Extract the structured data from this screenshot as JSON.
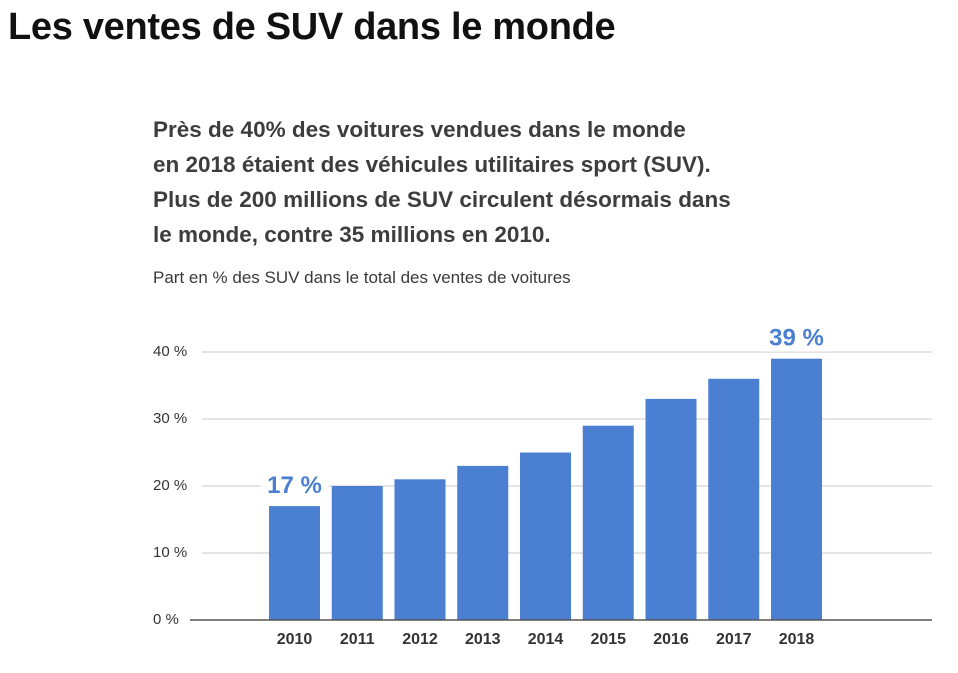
{
  "header": {
    "title": "Les ventes de SUV dans le monde",
    "subtitle_lines": [
      "Près de 40% des voitures vendues dans le monde",
      "en 2018 étaient des véhicules utilitaires sport (SUV).",
      "Plus de 200 millions de SUV circulent désormais dans",
      "le monde, contre 35 millions en 2010."
    ]
  },
  "chart_data": {
    "type": "bar",
    "title": "Part en % des SUV dans le total des ventes de voitures",
    "categories": [
      "2010",
      "2011",
      "2012",
      "2013",
      "2014",
      "2015",
      "2016",
      "2017",
      "2018"
    ],
    "values": [
      17,
      20,
      21,
      23,
      25,
      29,
      33,
      36,
      39
    ],
    "ylim": [
      0,
      40
    ],
    "yticks": [
      0,
      10,
      20,
      30,
      40
    ],
    "ytick_labels": [
      "0 %",
      "10 %",
      "20 %",
      "30 %",
      "40 %"
    ],
    "data_labels": [
      {
        "category": "2010",
        "text": "17 %"
      },
      {
        "category": "2018",
        "text": "39 %"
      }
    ],
    "grid": true,
    "xlabel": "",
    "ylabel": "",
    "colors": {
      "bar": "#4a7fd1",
      "label": "#4a7fd1",
      "grid": "#c8c8c8",
      "axis": "#555555"
    }
  }
}
